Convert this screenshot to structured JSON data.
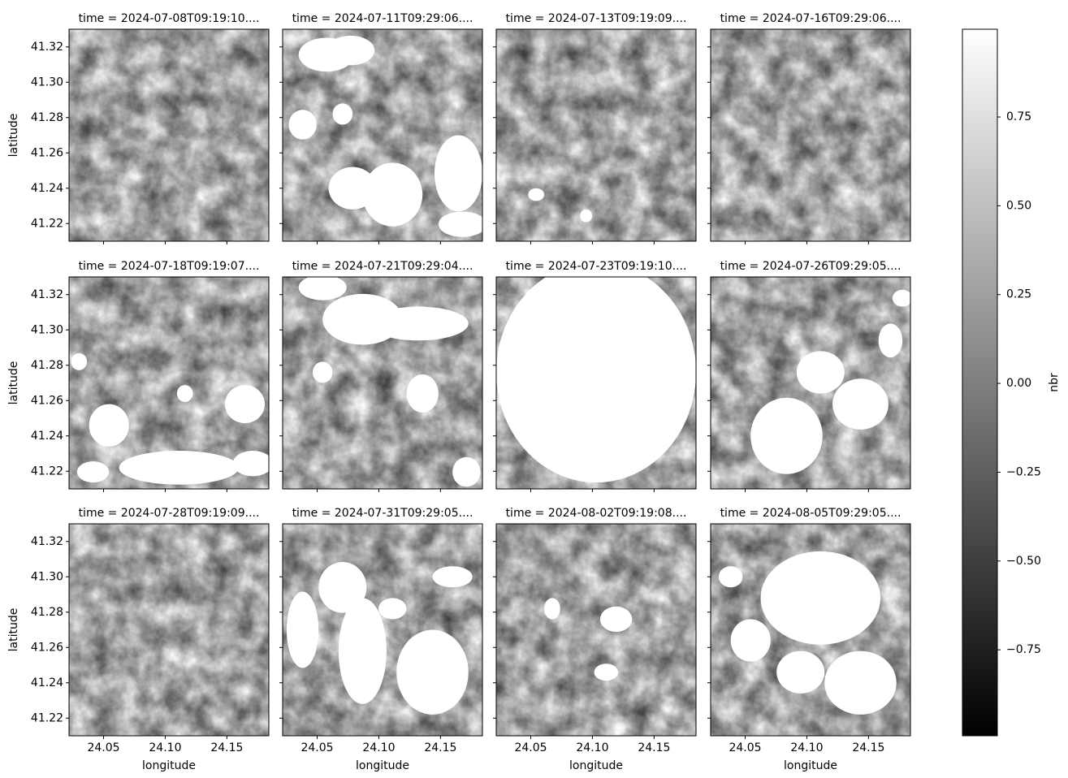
{
  "chart_data": {
    "type": "image",
    "titles": [
      "time = 2024-07-08T09:19:10....",
      "time = 2024-07-11T09:29:06....",
      "time = 2024-07-13T09:19:09....",
      "time = 2024-07-16T09:29:06....",
      "time = 2024-07-18T09:19:07....",
      "time = 2024-07-21T09:29:04....",
      "time = 2024-07-23T09:19:10....",
      "time = 2024-07-26T09:29:05....",
      "time = 2024-07-28T09:19:09....",
      "time = 2024-07-31T09:29:05....",
      "time = 2024-08-02T09:19:08....",
      "time = 2024-08-05T09:29:05...."
    ],
    "xlabel": "longitude",
    "ylabel": "latitude",
    "xlim": [
      24.022,
      24.184
    ],
    "ylim": [
      41.21,
      41.33
    ],
    "xticks": [
      24.05,
      {
        "value": 24.1,
        "label": "24.10"
      },
      24.15
    ],
    "yticks": [
      41.22,
      41.24,
      41.26,
      41.28,
      {
        "value": 41.3,
        "label": "41.30"
      },
      41.32
    ],
    "colormap": "gray",
    "colorbar": {
      "label": "nbr",
      "lim": [
        -0.992,
        0.997
      ],
      "ticks": [
        {
          "value": -0.75,
          "label": "−0.75"
        },
        {
          "value": -0.5,
          "label": "−0.50"
        },
        {
          "value": -0.25,
          "label": "−0.25"
        },
        {
          "value": 0,
          "label": "0.00"
        },
        0.25,
        {
          "value": 0.5,
          "label": "0.50"
        },
        0.75
      ]
    }
  }
}
